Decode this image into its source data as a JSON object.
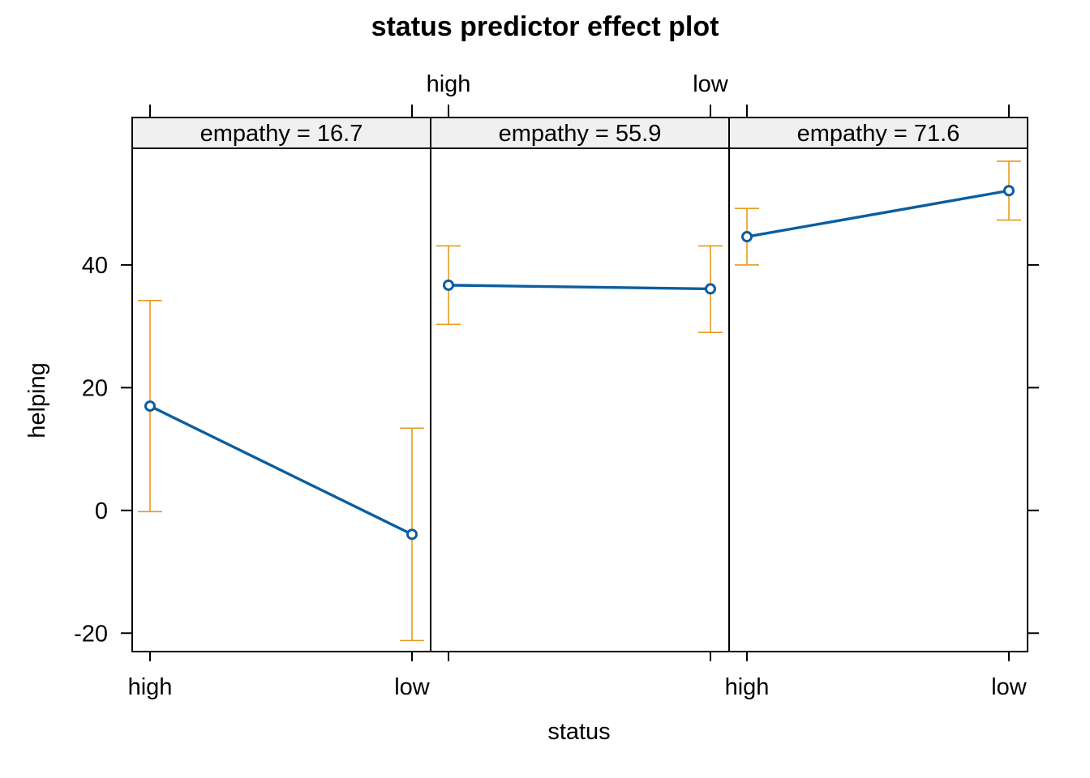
{
  "chart_data": {
    "type": "line",
    "title": "status predictor effect plot",
    "xlabel": "status",
    "ylabel": "helping",
    "categories": [
      "high",
      "low"
    ],
    "ylim": [
      -23,
      59
    ],
    "yticks": [
      -20,
      0,
      20,
      40
    ],
    "panel_var": "empathy",
    "panels": [
      {
        "strip": "empathy = 16.7",
        "fit": [
          17.0,
          -3.9
        ],
        "lower": [
          -0.2,
          -21.2
        ],
        "upper": [
          34.2,
          13.4
        ]
      },
      {
        "strip": "empathy = 55.9",
        "fit": [
          36.7,
          36.1
        ],
        "lower": [
          30.3,
          29.0
        ],
        "upper": [
          43.1,
          43.1
        ]
      },
      {
        "strip": "empathy = 71.6",
        "fit": [
          44.6,
          52.1
        ],
        "lower": [
          40.0,
          47.3
        ],
        "upper": [
          49.2,
          56.9
        ]
      }
    ],
    "colors": {
      "fit": "#0b5e9f",
      "ci": "#e69a1f",
      "strip_bg": "#f0f0f0"
    },
    "legend": "none",
    "grid": false
  }
}
